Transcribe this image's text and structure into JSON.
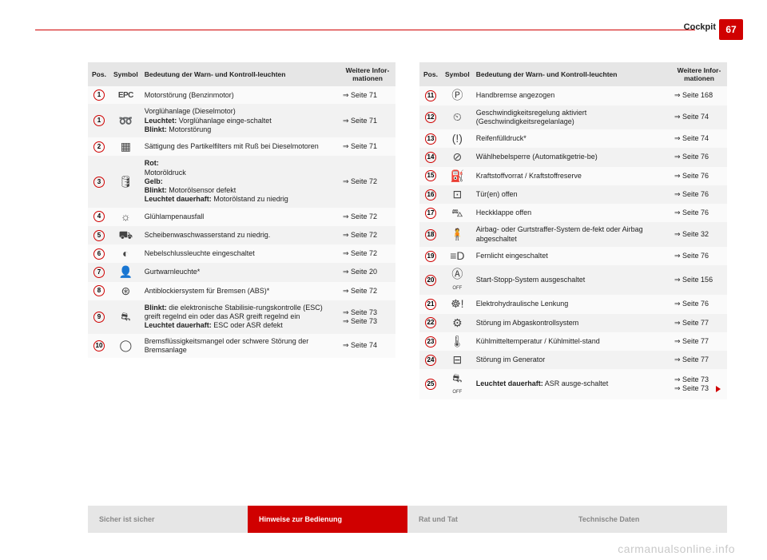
{
  "page": {
    "section_title": "Cockpit",
    "page_number": "67"
  },
  "table_headers": {
    "pos": "Pos.",
    "symbol": "Symbol",
    "meaning": "Bedeutung der Warn- und Kontroll-leuchten",
    "info": "Weitere Infor-mationen"
  },
  "left_rows": [
    {
      "n": "1",
      "glyph": "EPC",
      "glyph_css": "sym-epc",
      "html": "Motorstörung (Benzinmotor)",
      "info": "⇒ Seite 71"
    },
    {
      "n": "1",
      "glyph": "➿",
      "html": "Vorglühanlage (Dieselmotor)<br><b>Leuchtet:</b> Vorglühanlage einge-schaltet<br><b>Blinkt:</b> Motorstörung",
      "info": "⇒ Seite 71"
    },
    {
      "n": "2",
      "glyph": "▦",
      "html": "Sättigung des Partikelfilters mit Ruß bei Dieselmotoren",
      "info": "⇒ Seite 71"
    },
    {
      "n": "3",
      "glyph": "🛢",
      "html": "<b>Rot:</b><br>Motoröldruck<br><b>Gelb:</b><br><b>Blinkt:</b> Motorölsensor defekt<br><b>Leuchtet dauerhaft:</b> Motorölstand zu niedrig",
      "info": "⇒ Seite 72"
    },
    {
      "n": "4",
      "glyph": "☼",
      "html": "Glühlampenausfall",
      "info": "⇒ Seite 72"
    },
    {
      "n": "5",
      "glyph": "⛟",
      "html": "Scheibenwaschwasserstand zu niedrig.",
      "info": "⇒ Seite 72"
    },
    {
      "n": "6",
      "glyph": "◐",
      "html": "Nebelschlussleuchte eingeschaltet",
      "info": "⇒ Seite 72"
    },
    {
      "n": "7",
      "glyph": "👤",
      "html": "Gurtwarnleuchte*",
      "info": "⇒ Seite 20"
    },
    {
      "n": "8",
      "glyph": "⊛",
      "html": "Antiblockiersystem für Bremsen (ABS)*",
      "info": "⇒ Seite 72"
    },
    {
      "n": "9",
      "glyph": "⛐",
      "html": "<b>Blinkt:</b> die elektronische Stabilisie-rungskontrolle (ESC) greift regelnd ein oder das ASR greift regelnd ein<br><b>Leuchtet dauerhaft:</b> ESC oder ASR defekt",
      "info": "⇒ Seite 73<br>⇒ Seite 73"
    },
    {
      "n": "10",
      "glyph": "◯",
      "html": "Bremsflüssigkeitsmangel oder schwere Störung der Bremsanlage",
      "info": "⇒ Seite 74"
    }
  ],
  "right_rows": [
    {
      "n": "11",
      "glyph": "Ⓟ",
      "html": "Handbremse angezogen",
      "info": "⇒ Seite 168"
    },
    {
      "n": "12",
      "glyph": "⏲",
      "html": "Geschwindigkeitsregelung aktiviert (Geschwindigkeitsregelanlage)",
      "info": "⇒ Seite 74"
    },
    {
      "n": "13",
      "glyph": "(!)",
      "html": "Reifenfülldruck*",
      "info": "⇒ Seite 74"
    },
    {
      "n": "14",
      "glyph": "⊘",
      "html": "Wählhebelsperre (Automatikgetrie-be)",
      "info": "⇒ Seite 76"
    },
    {
      "n": "15",
      "glyph": "⛽",
      "html": "Kraftstoffvorrat / Kraftstoffreserve",
      "info": "⇒ Seite 76"
    },
    {
      "n": "16",
      "glyph": "⊡",
      "html": "Tür(en) offen",
      "info": "⇒ Seite 76"
    },
    {
      "n": "17",
      "glyph": "⛍",
      "html": "Heckklappe offen",
      "info": "⇒ Seite 76"
    },
    {
      "n": "18",
      "glyph": "🧍",
      "html": "Airbag- oder Gurtstraffer-System de-fekt oder Airbag abgeschaltet",
      "info": "⇒ Seite 32"
    },
    {
      "n": "19",
      "glyph": "≡D",
      "html": "Fernlicht eingeschaltet",
      "info": "⇒ Seite 76"
    },
    {
      "n": "20",
      "glyph": "Ⓐ<br><span style='font-size:6px'>OFF</span>",
      "html": "Start-Stopp-System ausgeschaltet",
      "info": "⇒ Seite 156"
    },
    {
      "n": "21",
      "glyph": "☸!",
      "html": "Elektrohydraulische Lenkung",
      "info": "⇒ Seite 76"
    },
    {
      "n": "22",
      "glyph": "⚙",
      "html": "Störung im Abgaskontrollsystem",
      "info": "⇒ Seite 77"
    },
    {
      "n": "23",
      "glyph": "🌡",
      "html": "Kühlmitteltemperatur / Kühlmittel-stand",
      "info": "⇒ Seite 77"
    },
    {
      "n": "24",
      "glyph": "⊟",
      "html": "Störung im Generator",
      "info": "⇒ Seite 77"
    },
    {
      "n": "25",
      "glyph": "⛐<br><span style='font-size:6px'>OFF</span>",
      "html": "<b>Leuchtet dauerhaft:</b> ASR ausge-schaltet",
      "info": "⇒ Seite 73<br>⇒ Seite 73&nbsp;&nbsp;<span class='continue-tri'></span>"
    }
  ],
  "footer": {
    "items": [
      {
        "label": "Sicher ist sicher",
        "active": false
      },
      {
        "label": "Hinweise zur Bedienung",
        "active": true
      },
      {
        "label": "Rat und Tat",
        "active": false
      },
      {
        "label": "Technische Daten",
        "active": false
      }
    ]
  },
  "watermark": "carmanualsonline.info",
  "colors": {
    "accent": "#d00000",
    "header_row": "#e6e6e6",
    "row_even": "#f2f2f2",
    "row_odd": "#fafafa"
  }
}
